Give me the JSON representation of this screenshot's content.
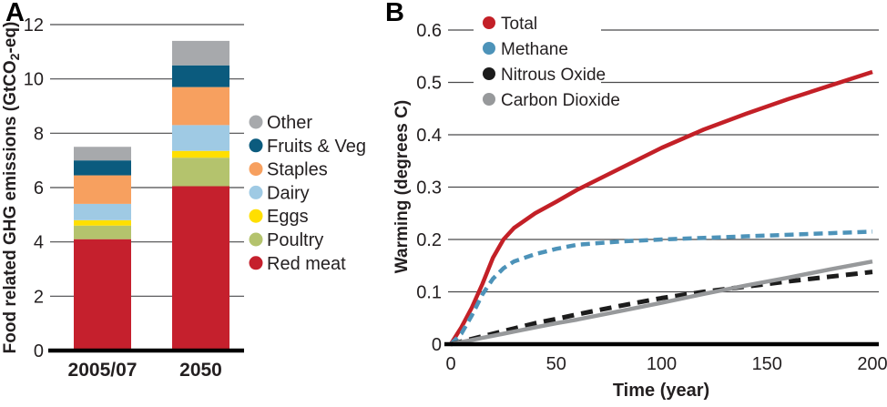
{
  "panels": {
    "a": {
      "label": "A"
    },
    "b": {
      "label": "B"
    }
  },
  "colors": {
    "grid": "#4a4a4c",
    "axis": "#000000",
    "text": "#231f20",
    "background": "#ffffff"
  },
  "chart_data": [
    {
      "id": "food-ghg-emissions",
      "type": "bar",
      "stacked": true,
      "categories": [
        "2005/07",
        "2050"
      ],
      "series": [
        {
          "name": "Red meat",
          "color": "#c5202d",
          "values": [
            4.1,
            6.05
          ]
        },
        {
          "name": "Poultry",
          "color": "#b4c36d",
          "values": [
            0.5,
            1.05
          ]
        },
        {
          "name": "Eggs",
          "color": "#ffdf00",
          "values": [
            0.2,
            0.25
          ]
        },
        {
          "name": "Dairy",
          "color": "#9fcae4",
          "values": [
            0.6,
            0.95
          ]
        },
        {
          "name": "Staples",
          "color": "#f7a05f",
          "values": [
            1.05,
            1.4
          ]
        },
        {
          "name": "Fruits & Veg",
          "color": "#0b5b7e",
          "values": [
            0.55,
            0.8
          ]
        },
        {
          "name": "Other",
          "color": "#a7a9ac",
          "values": [
            0.5,
            0.9
          ]
        }
      ],
      "bar_totals": [
        7.5,
        11.4
      ],
      "title": "",
      "xlabel": "",
      "ylabel": "Food related GHG emissions (GtCO2-eq)",
      "ylabel_parts": [
        {
          "t": "Food related GHG emissions (GtCO"
        },
        {
          "t": "2",
          "sub": true
        },
        {
          "t": "-eq)"
        }
      ],
      "ylim": [
        0,
        12
      ],
      "yticks": [
        0,
        2,
        4,
        6,
        8,
        10,
        12
      ],
      "grid": true,
      "legend_position": "right",
      "legend_order": [
        "Other",
        "Fruits & Veg",
        "Staples",
        "Dairy",
        "Eggs",
        "Poultry",
        "Red meat"
      ]
    },
    {
      "id": "warming-by-gas",
      "type": "line",
      "title": "",
      "xlabel": "Time (year)",
      "ylabel": "Warming (degrees C)",
      "xlim": [
        0,
        200
      ],
      "ylim": [
        0,
        0.6
      ],
      "xticks": [
        0,
        50,
        100,
        150,
        200
      ],
      "yticks": [
        0,
        0.1,
        0.2,
        0.3,
        0.4,
        0.5,
        0.6
      ],
      "grid": true,
      "legend_position": "top-left-inside",
      "x": [
        0,
        5,
        10,
        15,
        20,
        25,
        30,
        40,
        50,
        60,
        80,
        100,
        120,
        140,
        160,
        180,
        200
      ],
      "series": [
        {
          "name": "Total",
          "color": "#c32027",
          "style": "solid",
          "values": [
            0,
            0.032,
            0.07,
            0.115,
            0.165,
            0.2,
            0.222,
            0.25,
            0.272,
            0.295,
            0.335,
            0.375,
            0.41,
            0.44,
            0.468,
            0.494,
            0.52
          ]
        },
        {
          "name": "Methane",
          "color": "#4d93b9",
          "style": "dashed",
          "values": [
            0,
            0.02,
            0.055,
            0.095,
            0.125,
            0.145,
            0.158,
            0.172,
            0.182,
            0.19,
            0.196,
            0.2,
            0.203,
            0.206,
            0.209,
            0.212,
            0.215
          ]
        },
        {
          "name": "Nitrous Oxide",
          "color": "#1c1c1c",
          "style": "dashed",
          "values": [
            0,
            0.005,
            0.01,
            0.015,
            0.02,
            0.025,
            0.03,
            0.04,
            0.048,
            0.057,
            0.073,
            0.088,
            0.1,
            0.11,
            0.12,
            0.129,
            0.138
          ]
        },
        {
          "name": "Carbon Dioxide",
          "color": "#97999b",
          "style": "solid",
          "values": [
            0,
            0.004,
            0.008,
            0.012,
            0.016,
            0.02,
            0.024,
            0.032,
            0.04,
            0.047,
            0.063,
            0.079,
            0.096,
            0.112,
            0.127,
            0.143,
            0.158
          ]
        }
      ]
    }
  ]
}
